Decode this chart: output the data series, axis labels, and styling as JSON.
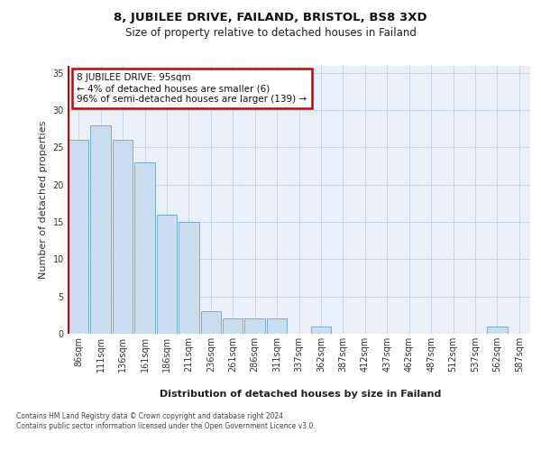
{
  "title_line1": "8, JUBILEE DRIVE, FAILAND, BRISTOL, BS8 3XD",
  "title_line2": "Size of property relative to detached houses in Failand",
  "xlabel": "Distribution of detached houses by size in Failand",
  "ylabel": "Number of detached properties",
  "categories": [
    "86sqm",
    "111sqm",
    "136sqm",
    "161sqm",
    "186sqm",
    "211sqm",
    "236sqm",
    "261sqm",
    "286sqm",
    "311sqm",
    "337sqm",
    "362sqm",
    "387sqm",
    "412sqm",
    "437sqm",
    "462sqm",
    "487sqm",
    "512sqm",
    "537sqm",
    "562sqm",
    "587sqm"
  ],
  "values": [
    26,
    28,
    26,
    23,
    16,
    15,
    3,
    2,
    2,
    2,
    0,
    1,
    0,
    0,
    0,
    0,
    0,
    0,
    0,
    1,
    0
  ],
  "bar_color": "#c9ddf0",
  "bar_edge_color": "#7aadd4",
  "marker_color": "#cc0000",
  "annotation_text": "8 JUBILEE DRIVE: 95sqm\n← 4% of detached houses are smaller (6)\n96% of semi-detached houses are larger (139) →",
  "annotation_box_facecolor": "#ffffff",
  "annotation_box_edgecolor": "#cc0000",
  "ylim": [
    0,
    36
  ],
  "yticks": [
    0,
    5,
    10,
    15,
    20,
    25,
    30,
    35
  ],
  "grid_color": "#c8d4e8",
  "bg_color": "#eaeff8",
  "fig_bg_color": "#ffffff",
  "title1_fontsize": 9.5,
  "title2_fontsize": 8.5,
  "ylabel_fontsize": 8,
  "xlabel_fontsize": 8,
  "tick_fontsize": 7,
  "ann_fontsize": 7.5,
  "footer_fontsize": 5.5,
  "footer_text": "Contains HM Land Registry data © Crown copyright and database right 2024.\nContains public sector information licensed under the Open Government Licence v3.0."
}
